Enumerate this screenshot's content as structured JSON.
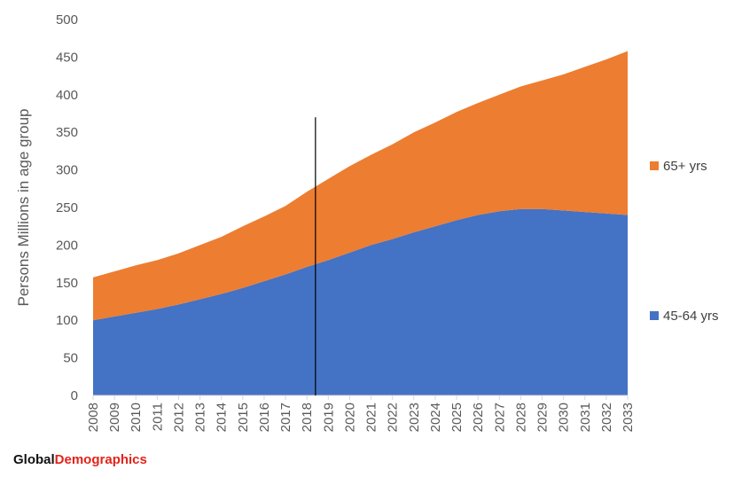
{
  "chart_data": {
    "type": "area",
    "stacked": true,
    "ylabel": "Persons Millions in age group",
    "xlabel": "",
    "ylim": [
      0,
      500
    ],
    "yticks": [
      0,
      50,
      100,
      150,
      200,
      250,
      300,
      350,
      400,
      450,
      500
    ],
    "grid": false,
    "legend_position": "right",
    "x": [
      "2008",
      "2009",
      "2010",
      "2011",
      "2012",
      "2013",
      "2014",
      "2015",
      "2016",
      "2017",
      "2018",
      "2019",
      "2020",
      "2021",
      "2022",
      "2023",
      "2024",
      "2025",
      "2026",
      "2027",
      "2028",
      "2029",
      "2030",
      "2031",
      "2032",
      "2033"
    ],
    "series": [
      {
        "name": "45-64 yrs",
        "color": "#4472c4",
        "values": [
          100,
          105,
          110,
          115,
          121,
          128,
          135,
          143,
          152,
          161,
          171,
          180,
          190,
          200,
          208,
          217,
          225,
          233,
          240,
          245,
          248,
          248,
          246,
          244,
          242,
          240
        ]
      },
      {
        "name": "65+ yrs",
        "color": "#ed7d31",
        "values": [
          57,
          60,
          63,
          65,
          68,
          72,
          76,
          82,
          86,
          91,
          100,
          108,
          115,
          120,
          126,
          133,
          138,
          144,
          149,
          155,
          163,
          171,
          181,
          193,
          205,
          218
        ]
      }
    ],
    "annotations": [
      {
        "type": "vertical-line",
        "x": 2018.4,
        "top_value": 370,
        "color": "#000000"
      }
    ]
  },
  "branding": {
    "logo_part1": "Global",
    "logo_part2": "Demographics"
  }
}
